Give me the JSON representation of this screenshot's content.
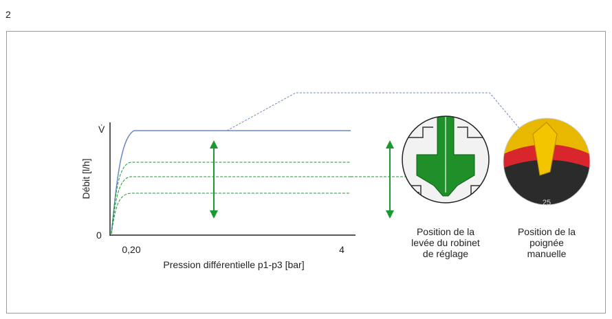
{
  "page_number": "2",
  "graph": {
    "y_symbol": "V̇",
    "y_label": "Débit [l/h]",
    "origin": "0",
    "x_ticks": [
      "0,20",
      "4"
    ],
    "x_label": "Pression différentielle p1-p3 [bar]"
  },
  "captions": [
    {
      "lines": [
        "Position de la",
        "levée du robinet",
        "de réglage"
      ]
    },
    {
      "lines": [
        "Position de la",
        "poignée",
        "manuelle"
      ]
    }
  ]
}
